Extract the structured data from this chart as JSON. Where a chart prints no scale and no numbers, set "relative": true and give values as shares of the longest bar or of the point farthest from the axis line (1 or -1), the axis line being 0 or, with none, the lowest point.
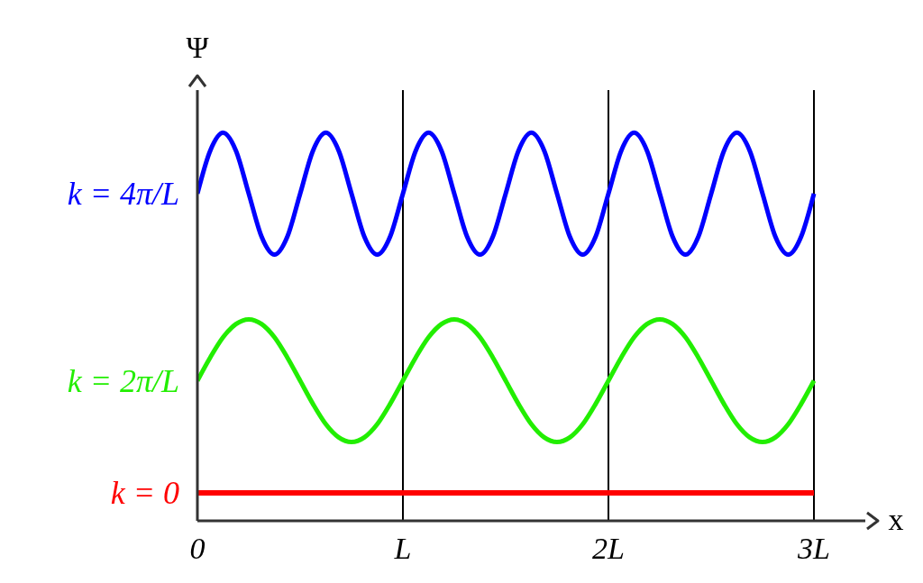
{
  "chart_data": {
    "type": "line",
    "relative": true,
    "xlabel": "x",
    "ylabel": "Ψ",
    "x": [
      0,
      0.0625,
      0.125,
      0.1875,
      0.25,
      0.3125,
      0.375,
      0.4375,
      0.5,
      0.5625,
      0.625,
      0.6875,
      0.75,
      0.8125,
      0.875,
      0.9375,
      1,
      1.0625,
      1.125,
      1.1875,
      1.25,
      1.3125,
      1.375,
      1.4375,
      1.5,
      1.5625,
      1.625,
      1.6875,
      1.75,
      1.8125,
      1.875,
      1.9375,
      2,
      2.0625,
      2.125,
      2.1875,
      2.25,
      2.3125,
      2.375,
      2.4375,
      2.5,
      2.5625,
      2.625,
      2.6875,
      2.75,
      2.8125,
      2.875,
      2.9375,
      3
    ],
    "xlim": [
      0,
      3.25
    ],
    "xticks": [
      0,
      {
        "value": 1,
        "label": "L"
      },
      {
        "value": 2,
        "label": "2L"
      },
      {
        "value": 3,
        "label": "3L"
      }
    ],
    "series": [
      {
        "name": "k = 4π/L",
        "color": "#0000ff",
        "values": [
          0.843,
          0.954,
          1,
          0.954,
          0.843,
          0.732,
          0.686,
          0.732,
          0.843,
          0.954,
          1,
          0.954,
          0.843,
          0.732,
          0.686,
          0.732,
          0.843,
          0.954,
          1,
          0.954,
          0.843,
          0.732,
          0.686,
          0.732,
          0.843,
          0.954,
          1,
          0.954,
          0.843,
          0.732,
          0.686,
          0.732,
          0.843,
          0.954,
          1,
          0.954,
          0.843,
          0.732,
          0.686,
          0.732,
          0.843,
          0.954,
          1,
          0.954,
          0.843,
          0.732,
          0.686,
          0.732,
          0.843
        ]
      },
      {
        "name": "k = 2π/L",
        "color": "#22ee00",
        "values": [
          0.361,
          0.421,
          0.473,
          0.507,
          0.519,
          0.507,
          0.473,
          0.421,
          0.361,
          0.301,
          0.249,
          0.215,
          0.203,
          0.215,
          0.249,
          0.301,
          0.361,
          0.421,
          0.473,
          0.507,
          0.519,
          0.507,
          0.473,
          0.421,
          0.361,
          0.301,
          0.249,
          0.215,
          0.203,
          0.215,
          0.249,
          0.301,
          0.361,
          0.421,
          0.473,
          0.507,
          0.519,
          0.507,
          0.473,
          0.421,
          0.361,
          0.301,
          0.249,
          0.215,
          0.203,
          0.215,
          0.249,
          0.301,
          0.361
        ]
      },
      {
        "name": "k = 0",
        "color": "#ff0000",
        "x": [
          0,
          3
        ],
        "values": [
          0.072,
          0.072
        ]
      }
    ],
    "ref_lines": [
      {
        "axis": "x",
        "value": 1,
        "color": "#000000"
      },
      {
        "axis": "x",
        "value": 2,
        "color": "#000000"
      },
      {
        "axis": "x",
        "value": 3,
        "color": "#000000"
      }
    ],
    "grid": false,
    "legend": false,
    "marker": "none",
    "line_style": "solid"
  }
}
